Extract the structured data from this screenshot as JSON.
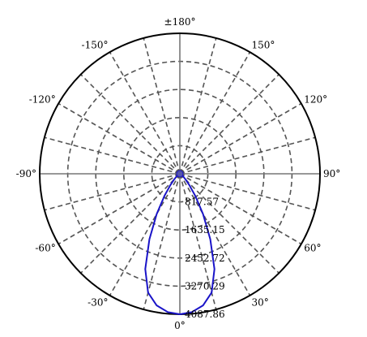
{
  "chart_data": {
    "type": "polar",
    "title": "",
    "angle_labels": [
      {
        "angle": 180,
        "label": "±180°"
      },
      {
        "angle": -150,
        "label": "-150°"
      },
      {
        "angle": 150,
        "label": "150°"
      },
      {
        "angle": -120,
        "label": "-120°"
      },
      {
        "angle": 120,
        "label": "120°"
      },
      {
        "angle": -90,
        "label": "-90°"
      },
      {
        "angle": 90,
        "label": "90°"
      },
      {
        "angle": -60,
        "label": "-60°"
      },
      {
        "angle": 60,
        "label": "60°"
      },
      {
        "angle": -30,
        "label": "-30°"
      },
      {
        "angle": 30,
        "label": "30°"
      },
      {
        "angle": 0,
        "label": "0°"
      }
    ],
    "angle_grid_step_deg": 15,
    "radial_ticks": [
      817.57,
      1635.15,
      2452.72,
      3270.29,
      4087.86
    ],
    "radial_tick_labels": [
      "817.57",
      "1635.15",
      "2452.72",
      "3270.29",
      "4087.86"
    ],
    "r_max": 4087.86,
    "grid": true,
    "series": [
      {
        "color": "#1a14c8",
        "points": [
          {
            "angle": 0,
            "r": 4087.86
          },
          {
            "angle": 5,
            "r": 4040
          },
          {
            "angle": 10,
            "r": 3890
          },
          {
            "angle": 15,
            "r": 3580
          },
          {
            "angle": 20,
            "r": 2950
          },
          {
            "angle": 25,
            "r": 2100
          },
          {
            "angle": 30,
            "r": 1350
          },
          {
            "angle": 35,
            "r": 780
          },
          {
            "angle": 40,
            "r": 430
          },
          {
            "angle": 45,
            "r": 240
          },
          {
            "angle": 50,
            "r": 140
          },
          {
            "angle": 60,
            "r": 70
          },
          {
            "angle": 70,
            "r": 45
          },
          {
            "angle": 80,
            "r": 30
          },
          {
            "angle": 90,
            "r": 15
          },
          {
            "angle": 100,
            "r": 0
          },
          {
            "angle": 180,
            "r": 0
          },
          {
            "angle": -100,
            "r": 0
          },
          {
            "angle": -90,
            "r": 15
          },
          {
            "angle": -80,
            "r": 30
          },
          {
            "angle": -70,
            "r": 45
          },
          {
            "angle": -60,
            "r": 70
          },
          {
            "angle": -50,
            "r": 140
          },
          {
            "angle": -45,
            "r": 240
          },
          {
            "angle": -40,
            "r": 430
          },
          {
            "angle": -35,
            "r": 780
          },
          {
            "angle": -30,
            "r": 1350
          },
          {
            "angle": -25,
            "r": 2100
          },
          {
            "angle": -20,
            "r": 2950
          },
          {
            "angle": -15,
            "r": 3580
          },
          {
            "angle": -10,
            "r": 3890
          },
          {
            "angle": -5,
            "r": 4040
          }
        ]
      }
    ],
    "colors": {
      "curve": "#1a14c8",
      "grid": "#555555",
      "frame": "#000000",
      "center": "#5555aa"
    }
  }
}
